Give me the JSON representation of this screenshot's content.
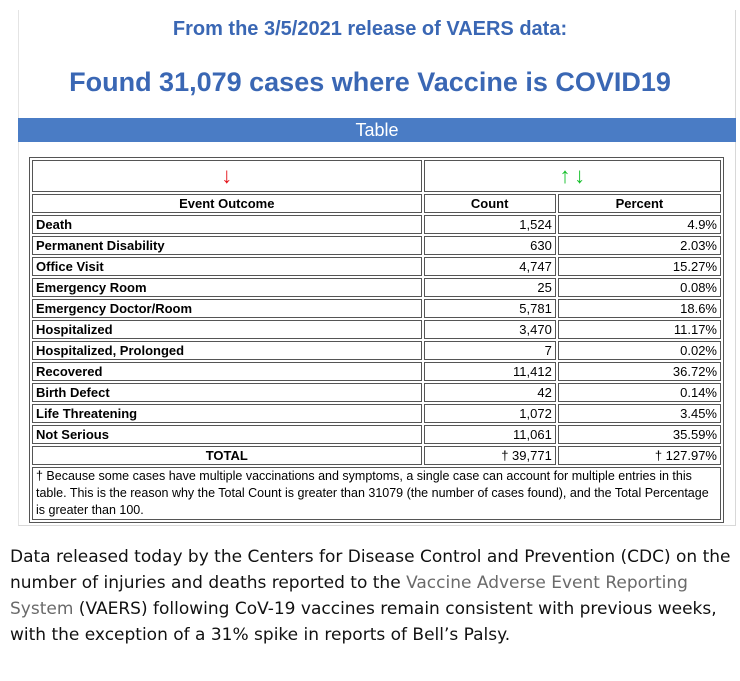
{
  "header": {
    "release_line": "From the 3/5/2021 release of VAERS data:",
    "found_line": "Found 31,079 cases where Vaccine is COVID19",
    "table_bar": "Table"
  },
  "table": {
    "sort_arrows": {
      "outcome": "↓",
      "count_up": "↑",
      "count_down": "↓"
    },
    "headers": {
      "outcome": "Event Outcome",
      "count": "Count",
      "percent": "Percent"
    },
    "rows": [
      {
        "outcome": "Death",
        "count": "1,524",
        "percent": "4.9%"
      },
      {
        "outcome": "Permanent Disability",
        "count": "630",
        "percent": "2.03%"
      },
      {
        "outcome": "Office Visit",
        "count": "4,747",
        "percent": "15.27%"
      },
      {
        "outcome": "Emergency Room",
        "count": "25",
        "percent": "0.08%"
      },
      {
        "outcome": "Emergency Doctor/Room",
        "count": "5,781",
        "percent": "18.6%"
      },
      {
        "outcome": "Hospitalized",
        "count": "3,470",
        "percent": "11.17%"
      },
      {
        "outcome": "Hospitalized, Prolonged",
        "count": "7",
        "percent": "0.02%"
      },
      {
        "outcome": "Recovered",
        "count": "11,412",
        "percent": "36.72%"
      },
      {
        "outcome": "Birth Defect",
        "count": "42",
        "percent": "0.14%"
      },
      {
        "outcome": "Life Threatening",
        "count": "1,072",
        "percent": "3.45%"
      },
      {
        "outcome": "Not Serious",
        "count": "11,061",
        "percent": "35.59%"
      }
    ],
    "total": {
      "label": "TOTAL",
      "count": "† 39,771",
      "percent": "† 127.97%"
    },
    "footnote": "† Because some cases have multiple vaccinations and symptoms, a single case can account for multiple entries in this table. This is the reason why the Total Count is greater than 31079 (the number of cases found), and the Total Percentage is greater than 100."
  },
  "caption": {
    "part1": "Data released today by the Centers for Disease Control and Prevention (CDC) on the number of injuries and deaths reported to the ",
    "link": "Vaccine Adverse Event Reporting System",
    "part2": " (VAERS) following CoV-19 vaccines remain consistent with previous weeks, with the exception of a 31% spike in reports of Bell’s Palsy."
  },
  "colors": {
    "heading_blue": "#3a67b4",
    "bar_blue": "#4a7cc5",
    "arrow_red": "#e4141b",
    "arrow_green": "#17c02d",
    "link_gray": "#6a6a6a"
  }
}
